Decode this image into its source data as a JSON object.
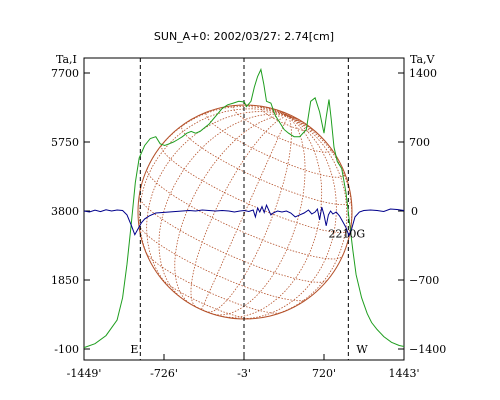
{
  "chart_data": {
    "type": "line",
    "title": "SUN_A+0: 2002/03/27: 2.74[cm]",
    "left_axis": {
      "label": "Ta,I",
      "ticks": [
        {
          "value": 7700,
          "label": "7700"
        },
        {
          "value": 5750,
          "label": "5750"
        },
        {
          "value": 3800,
          "label": "3800"
        },
        {
          "value": 1850,
          "label": "1850"
        },
        {
          "value": -100,
          "label": "-100"
        }
      ],
      "ylim": [
        -100,
        7700
      ]
    },
    "right_axis": {
      "label": "Ta,V",
      "ticks": [
        {
          "value": 1400,
          "label": "1400"
        },
        {
          "value": 700,
          "label": "700"
        },
        {
          "value": 0,
          "label": "0"
        },
        {
          "value": -700,
          "label": "-700"
        },
        {
          "value": -1400,
          "label": "-1400"
        }
      ],
      "ylim": [
        -1400,
        1400
      ]
    },
    "x_axis": {
      "label": "",
      "ticks": [
        {
          "value": -1449,
          "label": "-1449'"
        },
        {
          "value": -726,
          "label": "-726'"
        },
        {
          "value": -3,
          "label": "-3'"
        },
        {
          "value": 720,
          "label": "720'"
        },
        {
          "value": 1443,
          "label": "1443'"
        }
      ],
      "xlim": [
        -1449,
        1443
      ]
    },
    "dashed_markers": [
      {
        "x": -940,
        "label": "E"
      },
      {
        "x": -3,
        "label": ""
      },
      {
        "x": 940,
        "label": "W"
      }
    ],
    "annotations": [
      {
        "text": "2210G",
        "x": 760,
        "y_right": -230
      }
    ],
    "series": [
      {
        "axis": "left",
        "color": "#1f9e1f",
        "points": [
          [
            -1449,
            -60
          ],
          [
            -1350,
            50
          ],
          [
            -1250,
            280
          ],
          [
            -1150,
            720
          ],
          [
            -1100,
            1350
          ],
          [
            -1060,
            2300
          ],
          [
            -1020,
            3500
          ],
          [
            -985,
            4600
          ],
          [
            -950,
            5300
          ],
          [
            -900,
            5650
          ],
          [
            -850,
            5850
          ],
          [
            -800,
            5900
          ],
          [
            -760,
            5700
          ],
          [
            -720,
            5650
          ],
          [
            -680,
            5700
          ],
          [
            -640,
            5750
          ],
          [
            -600,
            5820
          ],
          [
            -560,
            5900
          ],
          [
            -520,
            6000
          ],
          [
            -480,
            6050
          ],
          [
            -440,
            6000
          ],
          [
            -400,
            6050
          ],
          [
            -360,
            6150
          ],
          [
            -320,
            6250
          ],
          [
            -280,
            6400
          ],
          [
            -240,
            6550
          ],
          [
            -200,
            6700
          ],
          [
            -150,
            6800
          ],
          [
            -100,
            6850
          ],
          [
            -50,
            6900
          ],
          [
            0,
            6880
          ],
          [
            20,
            6750
          ],
          [
            60,
            6900
          ],
          [
            90,
            7300
          ],
          [
            120,
            7600
          ],
          [
            150,
            7800
          ],
          [
            175,
            7400
          ],
          [
            200,
            6900
          ],
          [
            240,
            6850
          ],
          [
            280,
            6500
          ],
          [
            320,
            6300
          ],
          [
            360,
            6100
          ],
          [
            400,
            6000
          ],
          [
            450,
            5900
          ],
          [
            500,
            5900
          ],
          [
            560,
            6100
          ],
          [
            600,
            6900
          ],
          [
            640,
            7000
          ],
          [
            680,
            6600
          ],
          [
            720,
            6000
          ],
          [
            740,
            6450
          ],
          [
            765,
            6950
          ],
          [
            785,
            6400
          ],
          [
            810,
            5600
          ],
          [
            840,
            5200
          ],
          [
            880,
            5000
          ],
          [
            920,
            4300
          ],
          [
            950,
            3500
          ],
          [
            980,
            2700
          ],
          [
            1010,
            2000
          ],
          [
            1060,
            1350
          ],
          [
            1110,
            900
          ],
          [
            1150,
            650
          ],
          [
            1200,
            450
          ],
          [
            1260,
            250
          ],
          [
            1330,
            90
          ],
          [
            1400,
            0
          ],
          [
            1443,
            -30
          ]
        ]
      },
      {
        "axis": "right",
        "color": "#00008b",
        "points": [
          [
            -1449,
            0
          ],
          [
            -1400,
            -10
          ],
          [
            -1350,
            8
          ],
          [
            -1300,
            -6
          ],
          [
            -1250,
            12
          ],
          [
            -1200,
            0
          ],
          [
            -1150,
            10
          ],
          [
            -1100,
            5
          ],
          [
            -1060,
            -40
          ],
          [
            -1020,
            -150
          ],
          [
            -990,
            -240
          ],
          [
            -960,
            -180
          ],
          [
            -930,
            -120
          ],
          [
            -900,
            -80
          ],
          [
            -860,
            -50
          ],
          [
            -800,
            -20
          ],
          [
            -740,
            -15
          ],
          [
            -680,
            -10
          ],
          [
            -620,
            -5
          ],
          [
            -560,
            0
          ],
          [
            -500,
            5
          ],
          [
            -440,
            0
          ],
          [
            -380,
            10
          ],
          [
            -320,
            5
          ],
          [
            -260,
            0
          ],
          [
            -200,
            5
          ],
          [
            -140,
            0
          ],
          [
            -90,
            -10
          ],
          [
            -40,
            0
          ],
          [
            0,
            5
          ],
          [
            40,
            -5
          ],
          [
            80,
            10
          ],
          [
            100,
            -60
          ],
          [
            120,
            30
          ],
          [
            140,
            -10
          ],
          [
            160,
            45
          ],
          [
            180,
            -15
          ],
          [
            200,
            60
          ],
          [
            220,
            10
          ],
          [
            240,
            -40
          ],
          [
            260,
            -20
          ],
          [
            300,
            0
          ],
          [
            340,
            -10
          ],
          [
            380,
            0
          ],
          [
            420,
            -20
          ],
          [
            460,
            -60
          ],
          [
            500,
            -40
          ],
          [
            540,
            -20
          ],
          [
            580,
            10
          ],
          [
            610,
            -30
          ],
          [
            640,
            -10
          ],
          [
            660,
            20
          ],
          [
            680,
            -90
          ],
          [
            700,
            40
          ],
          [
            720,
            -40
          ],
          [
            740,
            -150
          ],
          [
            760,
            -40
          ],
          [
            780,
            0
          ],
          [
            800,
            -30
          ],
          [
            830,
            -10
          ],
          [
            860,
            -50
          ],
          [
            890,
            -110
          ],
          [
            920,
            -170
          ],
          [
            945,
            -250
          ],
          [
            970,
            -180
          ],
          [
            1000,
            -60
          ],
          [
            1040,
            -10
          ],
          [
            1080,
            5
          ],
          [
            1140,
            10
          ],
          [
            1200,
            5
          ],
          [
            1260,
            -5
          ],
          [
            1320,
            20
          ],
          [
            1380,
            15
          ],
          [
            1443,
            5
          ]
        ]
      }
    ]
  },
  "colors": {
    "disk": "#b5522b",
    "green": "#1f9e1f",
    "blue": "#00008b",
    "axes": "#000000"
  }
}
